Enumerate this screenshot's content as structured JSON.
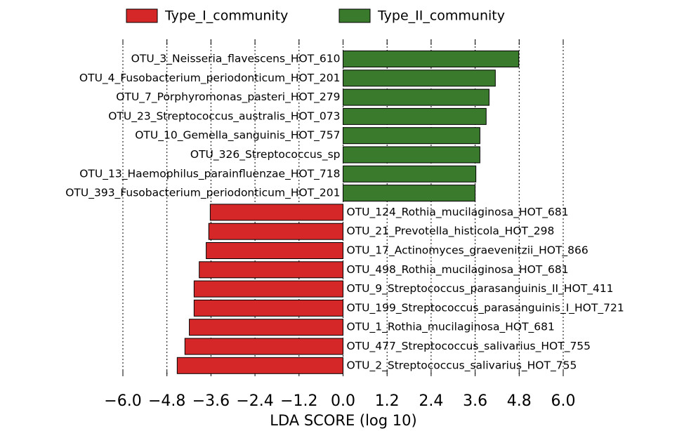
{
  "chart_data": {
    "type": "bar",
    "orientation": "horizontal",
    "xlabel": "LDA SCORE (log 10)",
    "categories": [
      "OTU_3_Neisseria_flavescens_HOT_610",
      "OTU_4_Fusobacterium_periodonticum_HOT_201",
      "OTU_7_Porphyromonas_pasteri_HOT_279",
      "OTU_23_Streptococcus_australis_HOT_073",
      "OTU_10_Gemella_sanguinis_HOT_757",
      "OTU_326_Streptococcus_sp",
      "OTU_13_Haemophilus_parainfluenzae_HOT_718",
      "OTU_393_Fusobacterium_periodonticum_HOT_201",
      "OTU_124_Rothia_mucilaginosa_HOT_681",
      "OTU_21_Prevotella_histicola_HOT_298",
      "OTU_17_Actinomyces_graevenitzii_HOT_866",
      "OTU_498_Rothia_mucilaginosa_HOT_681",
      "OTU_9_Streptococcus_parasanguinis_II_HOT_411",
      "OTU_199_Streptococcus_parasanguinis_I_HOT_721",
      "OTU_1_Rothia_mucilaginosa_HOT_681",
      "OTU_477_Streptococcus_salivarius_HOT_755",
      "OTU_2_Streptococcus_salivarius_HOT_755"
    ],
    "series": [
      {
        "name": "Type_I_community",
        "color": "#d62728",
        "values": [
          null,
          null,
          null,
          null,
          null,
          null,
          null,
          null,
          -3.62,
          -3.66,
          -3.73,
          -3.92,
          -4.06,
          -4.06,
          -4.19,
          -4.31,
          -4.52
        ]
      },
      {
        "name": "Type_II_community",
        "color": "#3a7a2c",
        "values": [
          4.79,
          4.15,
          3.98,
          3.9,
          3.73,
          3.73,
          3.62,
          3.6,
          null,
          null,
          null,
          null,
          null,
          null,
          null,
          null,
          null
        ]
      }
    ],
    "xlim": [
      -6.0,
      6.0
    ],
    "xticks": [
      {
        "value": -6.0,
        "label": "−6.0"
      },
      {
        "value": -4.8,
        "label": "−4.8"
      },
      {
        "value": -3.6,
        "label": "−3.6"
      },
      {
        "value": -2.4,
        "label": "−2.4"
      },
      {
        "value": -1.2,
        "label": "−1.2"
      },
      {
        "value": 0,
        "label": "0.0"
      },
      1.2,
      2.4,
      3.6,
      4.8,
      {
        "value": 6.0,
        "label": "6.0"
      }
    ],
    "grid": true,
    "legend": "top"
  }
}
